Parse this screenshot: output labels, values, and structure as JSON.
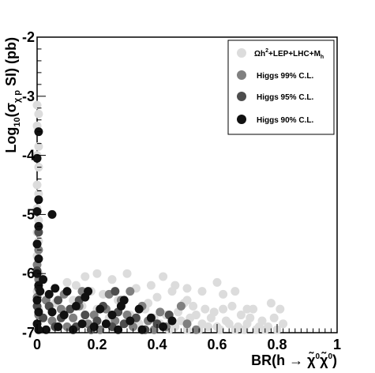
{
  "chart_data": {
    "type": "scatter",
    "xlabel_parts": [
      "BR(h ",
      "→",
      " ",
      "χ̃",
      "0",
      "χ̃",
      "0",
      ")"
    ],
    "ylabel_parts": [
      "Log",
      "10",
      "(σ",
      "χ p",
      " SI) (pb)"
    ],
    "xlim": [
      0,
      1
    ],
    "ylim": [
      -7,
      -2
    ],
    "x_ticks": [
      0,
      0.2,
      0.4,
      0.6,
      0.8,
      1
    ],
    "x_tick_labels": [
      "0",
      "0.2",
      "0.4",
      "0.6",
      "0.8",
      "1"
    ],
    "y_ticks": [
      -7,
      -6,
      -5,
      -4,
      -3,
      -2
    ],
    "y_tick_labels": [
      "-7",
      "-6",
      "-5",
      "-4",
      "-3",
      "-2"
    ],
    "legend_position": "top-right",
    "legend": [
      {
        "label_parts": [
          "Ωh",
          "2",
          "+LEP+LHC+M",
          "h"
        ],
        "color": "#dcdcdc"
      },
      {
        "label_parts": [
          "Higgs 99% C.L."
        ],
        "color": "#808080"
      },
      {
        "label_parts": [
          "Higgs 95% C.L."
        ],
        "color": "#4d4d4d"
      },
      {
        "label_parts": [
          "Higgs 90% C.L."
        ],
        "color": "#111111"
      }
    ],
    "series": [
      {
        "color": "#dcdcdc",
        "points": [
          [
            0.0,
            -3.15
          ],
          [
            0.005,
            -3.3
          ],
          [
            0.0,
            -3.5
          ],
          [
            0.005,
            -3.85
          ],
          [
            0.0,
            -4.0
          ],
          [
            0.005,
            -4.2
          ],
          [
            0.0,
            -4.5
          ],
          [
            0.005,
            -4.65
          ],
          [
            0.0,
            -4.9
          ],
          [
            0.005,
            -5.1
          ],
          [
            0.0,
            -5.3
          ],
          [
            0.005,
            -5.45
          ],
          [
            0.0,
            -5.7
          ],
          [
            0.005,
            -6.0
          ],
          [
            0.0,
            -6.3
          ],
          [
            0.005,
            -6.6
          ],
          [
            0.06,
            -6.5
          ],
          [
            0.1,
            -6.15
          ],
          [
            0.12,
            -6.45
          ],
          [
            0.13,
            -6.2
          ],
          [
            0.15,
            -6.55
          ],
          [
            0.18,
            -6.3
          ],
          [
            0.2,
            -6.0
          ],
          [
            0.22,
            -6.35
          ],
          [
            0.25,
            -6.1
          ],
          [
            0.27,
            -6.45
          ],
          [
            0.3,
            -6.0
          ],
          [
            0.33,
            -6.25
          ],
          [
            0.36,
            -6.6
          ],
          [
            0.38,
            -6.2
          ],
          [
            0.4,
            -6.4
          ],
          [
            0.42,
            -6.05
          ],
          [
            0.45,
            -6.3
          ],
          [
            0.47,
            -6.65
          ],
          [
            0.49,
            -6.5
          ],
          [
            0.5,
            -6.25
          ],
          [
            0.52,
            -6.55
          ],
          [
            0.53,
            -6.7
          ],
          [
            0.55,
            -6.85
          ],
          [
            0.56,
            -6.6
          ],
          [
            0.58,
            -6.75
          ],
          [
            0.6,
            -6.9
          ],
          [
            0.62,
            -6.35
          ],
          [
            0.63,
            -6.8
          ],
          [
            0.65,
            -6.55
          ],
          [
            0.66,
            -6.95
          ],
          [
            0.68,
            -6.7
          ],
          [
            0.7,
            -6.85
          ],
          [
            0.72,
            -6.6
          ],
          [
            0.73,
            -6.95
          ],
          [
            0.75,
            -6.8
          ],
          [
            0.77,
            -6.9
          ],
          [
            0.79,
            -6.75
          ],
          [
            0.8,
            -6.95
          ],
          [
            0.82,
            -6.85
          ],
          [
            0.41,
            -6.85
          ],
          [
            0.43,
            -6.7
          ],
          [
            0.46,
            -6.9
          ],
          [
            0.48,
            -6.8
          ],
          [
            0.5,
            -6.95
          ],
          [
            0.51,
            -6.75
          ],
          [
            0.54,
            -6.95
          ],
          [
            0.57,
            -6.9
          ],
          [
            0.59,
            -6.65
          ],
          [
            0.61,
            -6.95
          ],
          [
            0.64,
            -6.85
          ],
          [
            0.67,
            -6.9
          ],
          [
            0.69,
            -6.95
          ],
          [
            0.71,
            -6.75
          ],
          [
            0.74,
            -6.9
          ],
          [
            0.76,
            -6.95
          ],
          [
            0.16,
            -6.05
          ],
          [
            0.2,
            -6.6
          ],
          [
            0.24,
            -6.75
          ],
          [
            0.28,
            -6.55
          ],
          [
            0.31,
            -6.7
          ],
          [
            0.34,
            -6.85
          ],
          [
            0.37,
            -6.5
          ],
          [
            0.39,
            -6.75
          ],
          [
            0.44,
            -6.95
          ],
          [
            0.5,
            -6.45
          ],
          [
            0.46,
            -6.2
          ],
          [
            0.55,
            -6.3
          ],
          [
            0.6,
            -6.15
          ],
          [
            0.62,
            -6.6
          ],
          [
            0.66,
            -6.3
          ],
          [
            0.7,
            -6.6
          ],
          [
            0.78,
            -6.5
          ],
          [
            0.81,
            -6.6
          ]
        ]
      },
      {
        "color": "#808080",
        "points": [
          [
            0.005,
            -5.6
          ],
          [
            0.0,
            -5.85
          ],
          [
            0.005,
            -6.1
          ],
          [
            0.0,
            -6.4
          ],
          [
            0.005,
            -6.7
          ],
          [
            0.03,
            -6.45
          ],
          [
            0.05,
            -6.8
          ],
          [
            0.08,
            -6.6
          ],
          [
            0.1,
            -6.9
          ],
          [
            0.12,
            -6.75
          ],
          [
            0.14,
            -6.55
          ],
          [
            0.17,
            -6.85
          ],
          [
            0.19,
            -6.7
          ],
          [
            0.21,
            -6.95
          ],
          [
            0.23,
            -6.6
          ],
          [
            0.26,
            -6.8
          ],
          [
            0.28,
            -6.45
          ],
          [
            0.3,
            -6.7
          ],
          [
            0.32,
            -6.9
          ],
          [
            0.35,
            -6.55
          ],
          [
            0.37,
            -6.8
          ],
          [
            0.39,
            -6.95
          ],
          [
            0.41,
            -6.65
          ],
          [
            0.43,
            -6.9
          ],
          [
            0.48,
            -6.55
          ],
          [
            0.5,
            -6.85
          ],
          [
            0.53,
            -6.95
          ],
          [
            0.09,
            -6.35
          ],
          [
            0.15,
            -6.3
          ],
          [
            0.24,
            -6.35
          ],
          [
            0.31,
            -6.3
          ]
        ]
      },
      {
        "color": "#4d4d4d",
        "points": [
          [
            0.005,
            -5.3
          ],
          [
            0.0,
            -5.95
          ],
          [
            0.005,
            -6.25
          ],
          [
            0.0,
            -6.55
          ],
          [
            0.02,
            -6.75
          ],
          [
            0.04,
            -6.55
          ],
          [
            0.06,
            -6.9
          ],
          [
            0.08,
            -6.75
          ],
          [
            0.11,
            -6.6
          ],
          [
            0.13,
            -6.9
          ],
          [
            0.16,
            -6.7
          ],
          [
            0.18,
            -6.95
          ],
          [
            0.2,
            -6.8
          ],
          [
            0.22,
            -6.55
          ],
          [
            0.25,
            -6.9
          ],
          [
            0.27,
            -6.65
          ],
          [
            0.29,
            -6.85
          ],
          [
            0.33,
            -6.75
          ],
          [
            0.36,
            -6.95
          ],
          [
            0.4,
            -6.85
          ],
          [
            0.44,
            -6.7
          ],
          [
            0.07,
            -6.45
          ],
          [
            0.14,
            -6.45
          ],
          [
            0.26,
            -6.3
          ]
        ]
      },
      {
        "color": "#111111",
        "points": [
          [
            0.005,
            -3.6
          ],
          [
            0.0,
            -4.05
          ],
          [
            0.005,
            -4.75
          ],
          [
            0.0,
            -4.95
          ],
          [
            0.05,
            -5.0
          ],
          [
            0.005,
            -5.2
          ],
          [
            0.0,
            -5.5
          ],
          [
            0.005,
            -5.75
          ],
          [
            0.0,
            -6.0
          ],
          [
            0.005,
            -6.2
          ],
          [
            0.0,
            -6.45
          ],
          [
            0.005,
            -6.65
          ],
          [
            0.0,
            -6.85
          ],
          [
            0.005,
            -6.95
          ],
          [
            0.01,
            -6.3
          ],
          [
            0.03,
            -6.95
          ],
          [
            0.04,
            -6.35
          ],
          [
            0.05,
            -6.65
          ],
          [
            0.07,
            -6.9
          ],
          [
            0.09,
            -6.7
          ],
          [
            0.1,
            -6.3
          ],
          [
            0.12,
            -6.95
          ],
          [
            0.13,
            -6.55
          ],
          [
            0.15,
            -6.85
          ],
          [
            0.17,
            -6.3
          ],
          [
            0.19,
            -6.9
          ],
          [
            0.21,
            -6.6
          ],
          [
            0.23,
            -6.85
          ],
          [
            0.25,
            -6.7
          ],
          [
            0.27,
            -6.95
          ],
          [
            0.29,
            -6.45
          ],
          [
            0.31,
            -6.8
          ],
          [
            0.34,
            -6.6
          ],
          [
            0.35,
            -6.95
          ],
          [
            0.38,
            -6.75
          ],
          [
            0.42,
            -6.9
          ],
          [
            0.45,
            -6.8
          ],
          [
            0.02,
            -6.1
          ],
          [
            0.06,
            -6.25
          ],
          [
            0.16,
            -6.4
          ],
          [
            0.28,
            -6.55
          ]
        ]
      }
    ]
  }
}
